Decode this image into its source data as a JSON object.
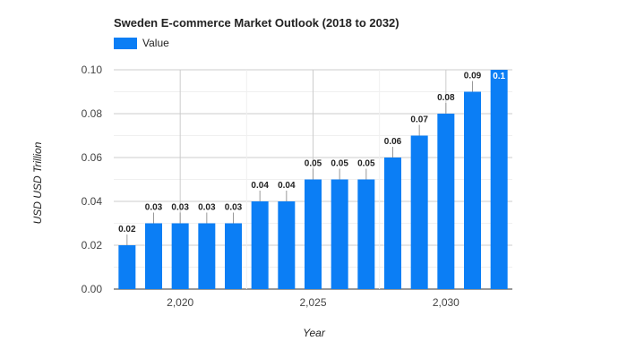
{
  "chart_data": {
    "type": "bar",
    "title": "Sweden E-commerce Market Outlook (2018 to 2032)",
    "xlabel": "Year",
    "ylabel": "USD USD Trillion",
    "legend": {
      "position": "top-left",
      "entries": [
        "Value"
      ]
    },
    "grid": true,
    "ylim": [
      0,
      0.1
    ],
    "y_ticks": [
      "0.00",
      "0.02",
      "0.04",
      "0.06",
      "0.08",
      "0.10"
    ],
    "x_tick_labels": [
      "2,020",
      "2,025",
      "2,030"
    ],
    "x_tick_values": [
      2020,
      2025,
      2030
    ],
    "categories": [
      2018,
      2019,
      2020,
      2021,
      2022,
      2023,
      2024,
      2025,
      2026,
      2027,
      2028,
      2029,
      2030,
      2031,
      2032
    ],
    "series": [
      {
        "name": "Value",
        "color": "#0b7ef5",
        "values": [
          0.02,
          0.03,
          0.03,
          0.03,
          0.03,
          0.04,
          0.04,
          0.05,
          0.05,
          0.05,
          0.06,
          0.07,
          0.08,
          0.09,
          0.1
        ],
        "labels": [
          "0.02",
          "0.03",
          "0.03",
          "0.03",
          "0.03",
          "0.04",
          "0.04",
          "0.05",
          "0.05",
          "0.05",
          "0.06",
          "0.07",
          "0.08",
          "0.09",
          "0.1"
        ]
      }
    ]
  }
}
